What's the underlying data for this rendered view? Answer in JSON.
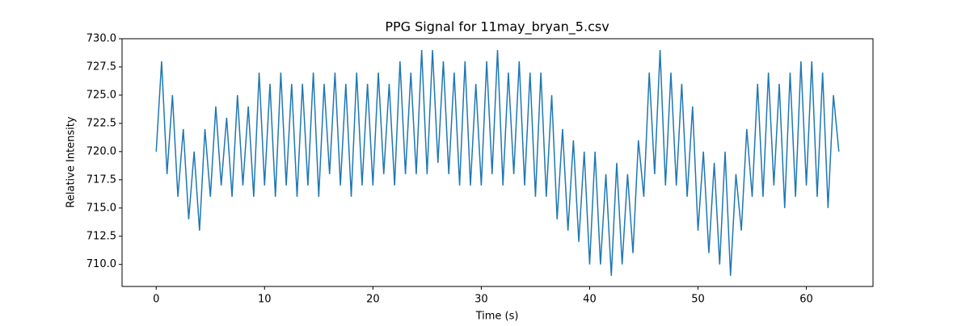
{
  "chart_data": {
    "type": "line",
    "title": "PPG Signal for 11may_bryan_5.csv",
    "x_label": "Time (s)",
    "y_label": "Relative Intensity",
    "color": "#1f77b4",
    "x": [
      0,
      0.5,
      1,
      1.5,
      2,
      2.5,
      3,
      3.5,
      4,
      4.5,
      5,
      5.5,
      6,
      6.5,
      7,
      7.5,
      8,
      8.5,
      9,
      9.5,
      10,
      10.5,
      11,
      11.5,
      12,
      12.5,
      13,
      13.5,
      14,
      14.5,
      15,
      15.5,
      16,
      16.5,
      17,
      17.5,
      18,
      18.5,
      19,
      19.5,
      20,
      20.5,
      21,
      21.5,
      22,
      22.5,
      23,
      23.5,
      24,
      24.5,
      25,
      25.5,
      26,
      26.5,
      27,
      27.5,
      28,
      28.5,
      29,
      29.5,
      30,
      30.5,
      31,
      31.5,
      32,
      32.5,
      33,
      33.5,
      34,
      34.5,
      35,
      35.5,
      36,
      36.5,
      37,
      37.5,
      38,
      38.5,
      39,
      39.5,
      40,
      40.5,
      41,
      41.5,
      42,
      42.5,
      43,
      43.5,
      44,
      44.5,
      45,
      45.5,
      46,
      46.5,
      47,
      47.5,
      48,
      48.5,
      49,
      49.5,
      50,
      50.5,
      51,
      51.5,
      52,
      52.5,
      53,
      53.5,
      54,
      54.5,
      55,
      55.5,
      56,
      56.5,
      57,
      57.5,
      58,
      58.5,
      59,
      59.5,
      60,
      60.5,
      61,
      61.5,
      62,
      62.5,
      63
    ],
    "values": [
      720,
      728,
      718,
      725,
      716,
      722,
      714,
      720,
      713,
      722,
      716,
      724,
      717,
      723,
      716,
      725,
      717,
      724,
      716,
      727,
      717,
      726,
      716,
      727,
      717,
      726,
      716,
      726,
      717,
      727,
      716,
      726,
      718,
      727,
      717,
      726,
      716,
      727,
      717,
      726,
      717,
      727,
      718,
      726,
      717,
      728,
      718,
      727,
      718,
      729,
      718,
      729,
      719,
      728,
      718,
      727,
      717,
      728,
      717,
      726,
      717,
      728,
      718,
      729,
      717,
      727,
      718,
      728,
      717,
      727,
      716,
      727,
      716,
      725,
      714,
      722,
      713,
      721,
      712,
      720,
      710,
      720,
      710,
      718,
      709,
      719,
      710,
      718,
      711,
      721,
      716,
      727,
      718,
      729,
      717,
      727,
      717,
      726,
      716,
      724,
      713,
      720,
      711,
      719,
      710,
      720,
      709,
      718,
      713,
      722,
      716,
      726,
      716,
      727,
      717,
      726,
      715,
      727,
      716,
      728,
      717,
      728,
      716,
      727,
      715,
      725,
      720
    ],
    "xlim": [
      -3.15,
      66.15
    ],
    "ylim": [
      708.05,
      730.0
    ],
    "xticks": [
      0,
      10,
      20,
      30,
      40,
      50,
      60
    ],
    "yticks": [
      {
        "value": 710,
        "label": "710.0"
      },
      {
        "value": 712.5,
        "label": "712.5"
      },
      {
        "value": 715,
        "label": "715.0"
      },
      {
        "value": 717.5,
        "label": "717.5"
      },
      {
        "value": 720,
        "label": "720.0"
      },
      {
        "value": 722.5,
        "label": "722.5"
      },
      {
        "value": 725,
        "label": "725.0"
      },
      {
        "value": 727.5,
        "label": "727.5"
      },
      {
        "value": 730,
        "label": "730.0"
      }
    ]
  }
}
